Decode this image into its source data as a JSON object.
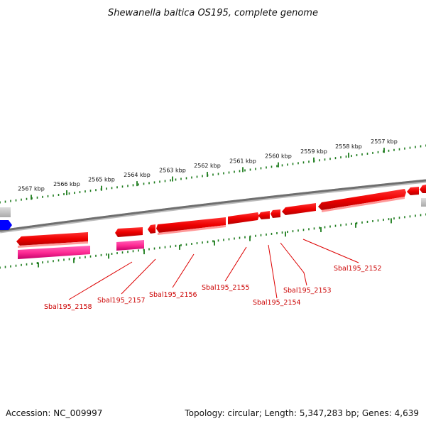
{
  "title": "Shewanella baltica OS195, complete genome",
  "kbp_ticks": [
    "2567 kbp",
    "2566 kbp",
    "2565 kbp",
    "2564 kbp",
    "2563 kbp",
    "2562 kbp",
    "2561 kbp",
    "2560 kbp",
    "2559 kbp",
    "2558 kbp",
    "2557 kbp"
  ],
  "genes": [
    "Sbal195_2158",
    "Sbal195_2157",
    "Sbal195_2156",
    "Sbal195_2155",
    "Sbal195_2154",
    "Sbal195_2153",
    "Sbal195_2152"
  ],
  "footer": {
    "accession": "Accession: NC_009997",
    "summary": "Topology: circular; Length: 5,347,283 bp; Genes: 4,639"
  },
  "colors": {
    "cds": "#ff0000",
    "rna": "#ff3399",
    "other": "#0000ff",
    "tick": "#1a7a1a",
    "backbone": "#777777",
    "label": "#cc0000"
  }
}
